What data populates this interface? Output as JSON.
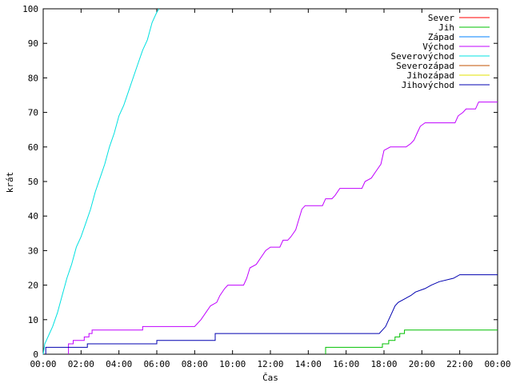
{
  "chart_data": {
    "type": "line",
    "title": "",
    "xlabel": "Čas",
    "ylabel": "krát",
    "xlim": [
      "00:00",
      "24:00"
    ],
    "ylim": [
      0,
      100
    ],
    "x_ticks": [
      "00:00",
      "02:00",
      "04:00",
      "06:00",
      "08:00",
      "10:00",
      "12:00",
      "14:00",
      "16:00",
      "18:00",
      "20:00",
      "22:00",
      "00:00"
    ],
    "y_ticks": [
      0,
      10,
      20,
      30,
      40,
      50,
      60,
      70,
      80,
      90,
      100
    ],
    "grid": false,
    "legend_position": "top-right",
    "series": [
      {
        "name": "Sever",
        "color": "#ff0000",
        "points": []
      },
      {
        "name": "Jih",
        "color": "#00c000",
        "points": [
          [
            "14:55",
            0
          ],
          [
            "14:55",
            2
          ],
          [
            "17:55",
            2
          ],
          [
            "17:55",
            3
          ],
          [
            "18:15",
            3
          ],
          [
            "18:15",
            4
          ],
          [
            "18:35",
            4
          ],
          [
            "18:35",
            5
          ],
          [
            "18:50",
            5
          ],
          [
            "18:50",
            6
          ],
          [
            "19:05",
            6
          ],
          [
            "19:05",
            7
          ],
          [
            "24:00",
            7
          ]
        ]
      },
      {
        "name": "Západ",
        "color": "#0080ff",
        "points": []
      },
      {
        "name": "Východ",
        "color": "#c000ff",
        "points": [
          [
            "01:20",
            0
          ],
          [
            "01:20",
            3
          ],
          [
            "01:35",
            3
          ],
          [
            "01:35",
            4
          ],
          [
            "02:10",
            4
          ],
          [
            "02:10",
            5
          ],
          [
            "02:25",
            5
          ],
          [
            "02:25",
            6
          ],
          [
            "02:35",
            6
          ],
          [
            "02:35",
            7
          ],
          [
            "05:15",
            7
          ],
          [
            "05:15",
            8
          ],
          [
            "08:00",
            8
          ],
          [
            "08:20",
            10
          ],
          [
            "08:35",
            12
          ],
          [
            "08:50",
            14
          ],
          [
            "09:10",
            15
          ],
          [
            "09:20",
            17
          ],
          [
            "09:35",
            19
          ],
          [
            "09:45",
            20
          ],
          [
            "10:35",
            20
          ],
          [
            "10:45",
            22
          ],
          [
            "10:55",
            25
          ],
          [
            "11:15",
            26
          ],
          [
            "11:30",
            28
          ],
          [
            "11:45",
            30
          ],
          [
            "12:00",
            31
          ],
          [
            "12:30",
            31
          ],
          [
            "12:40",
            33
          ],
          [
            "12:55",
            33
          ],
          [
            "13:05",
            34
          ],
          [
            "13:20",
            36
          ],
          [
            "13:30",
            39
          ],
          [
            "13:40",
            42
          ],
          [
            "13:50",
            43
          ],
          [
            "14:45",
            43
          ],
          [
            "14:55",
            45
          ],
          [
            "15:15",
            45
          ],
          [
            "15:25",
            46
          ],
          [
            "15:40",
            48
          ],
          [
            "16:50",
            48
          ],
          [
            "17:00",
            50
          ],
          [
            "17:20",
            51
          ],
          [
            "17:35",
            53
          ],
          [
            "17:50",
            55
          ],
          [
            "18:00",
            59
          ],
          [
            "18:20",
            60
          ],
          [
            "19:10",
            60
          ],
          [
            "19:25",
            61
          ],
          [
            "19:35",
            62
          ],
          [
            "19:45",
            64
          ],
          [
            "19:55",
            66
          ],
          [
            "20:10",
            67
          ],
          [
            "21:45",
            67
          ],
          [
            "21:55",
            69
          ],
          [
            "22:10",
            70
          ],
          [
            "22:20",
            71
          ],
          [
            "22:50",
            71
          ],
          [
            "23:00",
            73
          ],
          [
            "24:00",
            73
          ]
        ]
      },
      {
        "name": "Severovýchod",
        "color": "#00e0e0",
        "points": [
          [
            "00:00",
            0
          ],
          [
            "00:05",
            3
          ],
          [
            "00:15",
            5
          ],
          [
            "00:30",
            8
          ],
          [
            "00:45",
            12
          ],
          [
            "01:00",
            17
          ],
          [
            "01:15",
            22
          ],
          [
            "01:30",
            26
          ],
          [
            "01:45",
            31
          ],
          [
            "02:00",
            34
          ],
          [
            "02:15",
            38
          ],
          [
            "02:30",
            42
          ],
          [
            "02:45",
            47
          ],
          [
            "03:00",
            51
          ],
          [
            "03:15",
            55
          ],
          [
            "03:30",
            60
          ],
          [
            "03:45",
            64
          ],
          [
            "04:00",
            69
          ],
          [
            "04:15",
            72
          ],
          [
            "04:30",
            76
          ],
          [
            "04:45",
            80
          ],
          [
            "05:00",
            84
          ],
          [
            "05:15",
            88
          ],
          [
            "05:30",
            91
          ],
          [
            "05:45",
            96
          ],
          [
            "06:00",
            99
          ],
          [
            "06:07",
            100
          ]
        ]
      },
      {
        "name": "Severozápad",
        "color": "#c05000",
        "points": []
      },
      {
        "name": "Jihozápad",
        "color": "#e0e000",
        "points": []
      },
      {
        "name": "Jihovýchod",
        "color": "#0000b0",
        "points": [
          [
            "00:08",
            0
          ],
          [
            "00:08",
            2
          ],
          [
            "02:20",
            2
          ],
          [
            "02:20",
            3
          ],
          [
            "06:00",
            3
          ],
          [
            "06:00",
            4
          ],
          [
            "09:05",
            4
          ],
          [
            "09:05",
            6
          ],
          [
            "17:45",
            6
          ],
          [
            "17:55",
            7
          ],
          [
            "18:05",
            8
          ],
          [
            "18:15",
            10
          ],
          [
            "18:25",
            12
          ],
          [
            "18:35",
            14
          ],
          [
            "18:45",
            15
          ],
          [
            "19:05",
            16
          ],
          [
            "19:25",
            17
          ],
          [
            "19:40",
            18
          ],
          [
            "20:10",
            19
          ],
          [
            "20:30",
            20
          ],
          [
            "20:55",
            21
          ],
          [
            "21:40",
            22
          ],
          [
            "22:00",
            23
          ],
          [
            "24:00",
            23
          ]
        ]
      }
    ]
  }
}
